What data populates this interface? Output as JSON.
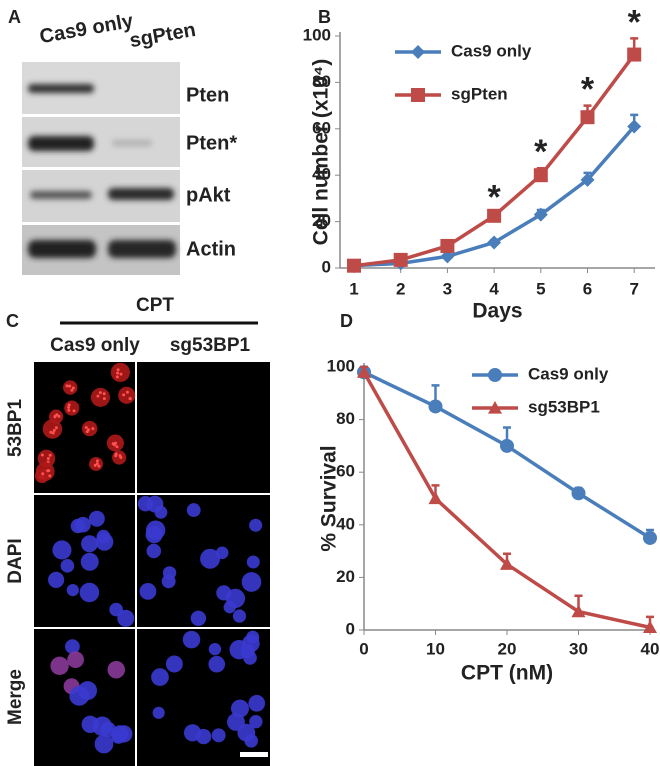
{
  "panel_labels": [
    "A",
    "B",
    "C",
    "D"
  ],
  "blot": {
    "columns": [
      "Cas9 only",
      "sgPten"
    ],
    "rows": [
      "Pten",
      "Pten*",
      "pAkt",
      "Actin"
    ]
  },
  "microscopy": {
    "group": "CPT",
    "columns": [
      "Cas9 only",
      "sg53BP1"
    ],
    "rows": [
      "53BP1",
      "DAPI",
      "Merge"
    ]
  },
  "chart_data": [
    {
      "type": "line",
      "xlabel": "Days",
      "ylabel": "Cell number (x10⁴)",
      "categories": [
        "1",
        "2",
        "3",
        "4",
        "5",
        "6",
        "7"
      ],
      "ylim": [
        0,
        100
      ],
      "yticks": [
        0,
        20,
        40,
        60,
        80,
        100
      ],
      "series": [
        {
          "name": "Cas9 only",
          "color": "#4a7ebb",
          "marker": "diamond",
          "values": [
            1,
            2,
            5,
            11,
            23,
            38,
            61
          ],
          "errors": [
            0.5,
            0.5,
            1,
            1,
            2,
            3,
            5
          ]
        },
        {
          "name": "sgPten",
          "color": "#be4b48",
          "marker": "square",
          "values": [
            1,
            3.5,
            9.5,
            22.5,
            40,
            65,
            92
          ],
          "errors": [
            0.5,
            1,
            1,
            1,
            3,
            5,
            7
          ]
        }
      ],
      "annotations": [
        {
          "x": "4",
          "text": "*"
        },
        {
          "x": "5",
          "text": "*"
        },
        {
          "x": "6",
          "text": "*"
        },
        {
          "x": "7",
          "text": "*"
        }
      ]
    },
    {
      "type": "line",
      "xlabel": "CPT (nM)",
      "ylabel": "% Survival",
      "x": [
        0,
        10,
        20,
        30,
        40
      ],
      "xlim": [
        0,
        40
      ],
      "xticks": [
        0,
        10,
        20,
        30,
        40
      ],
      "ylim": [
        0,
        100
      ],
      "yticks": [
        0,
        20,
        40,
        60,
        80,
        100
      ],
      "series": [
        {
          "name": "Cas9 only",
          "color": "#4a7ebb",
          "marker": "circle",
          "values": [
            98,
            85,
            70,
            52,
            35
          ],
          "errors": [
            2,
            8,
            7,
            2,
            3
          ]
        },
        {
          "name": "sg53BP1",
          "color": "#be4b48",
          "marker": "triangle",
          "values": [
            98,
            50,
            25,
            7,
            1
          ],
          "errors": [
            2,
            5,
            4,
            6,
            4
          ]
        }
      ]
    }
  ]
}
